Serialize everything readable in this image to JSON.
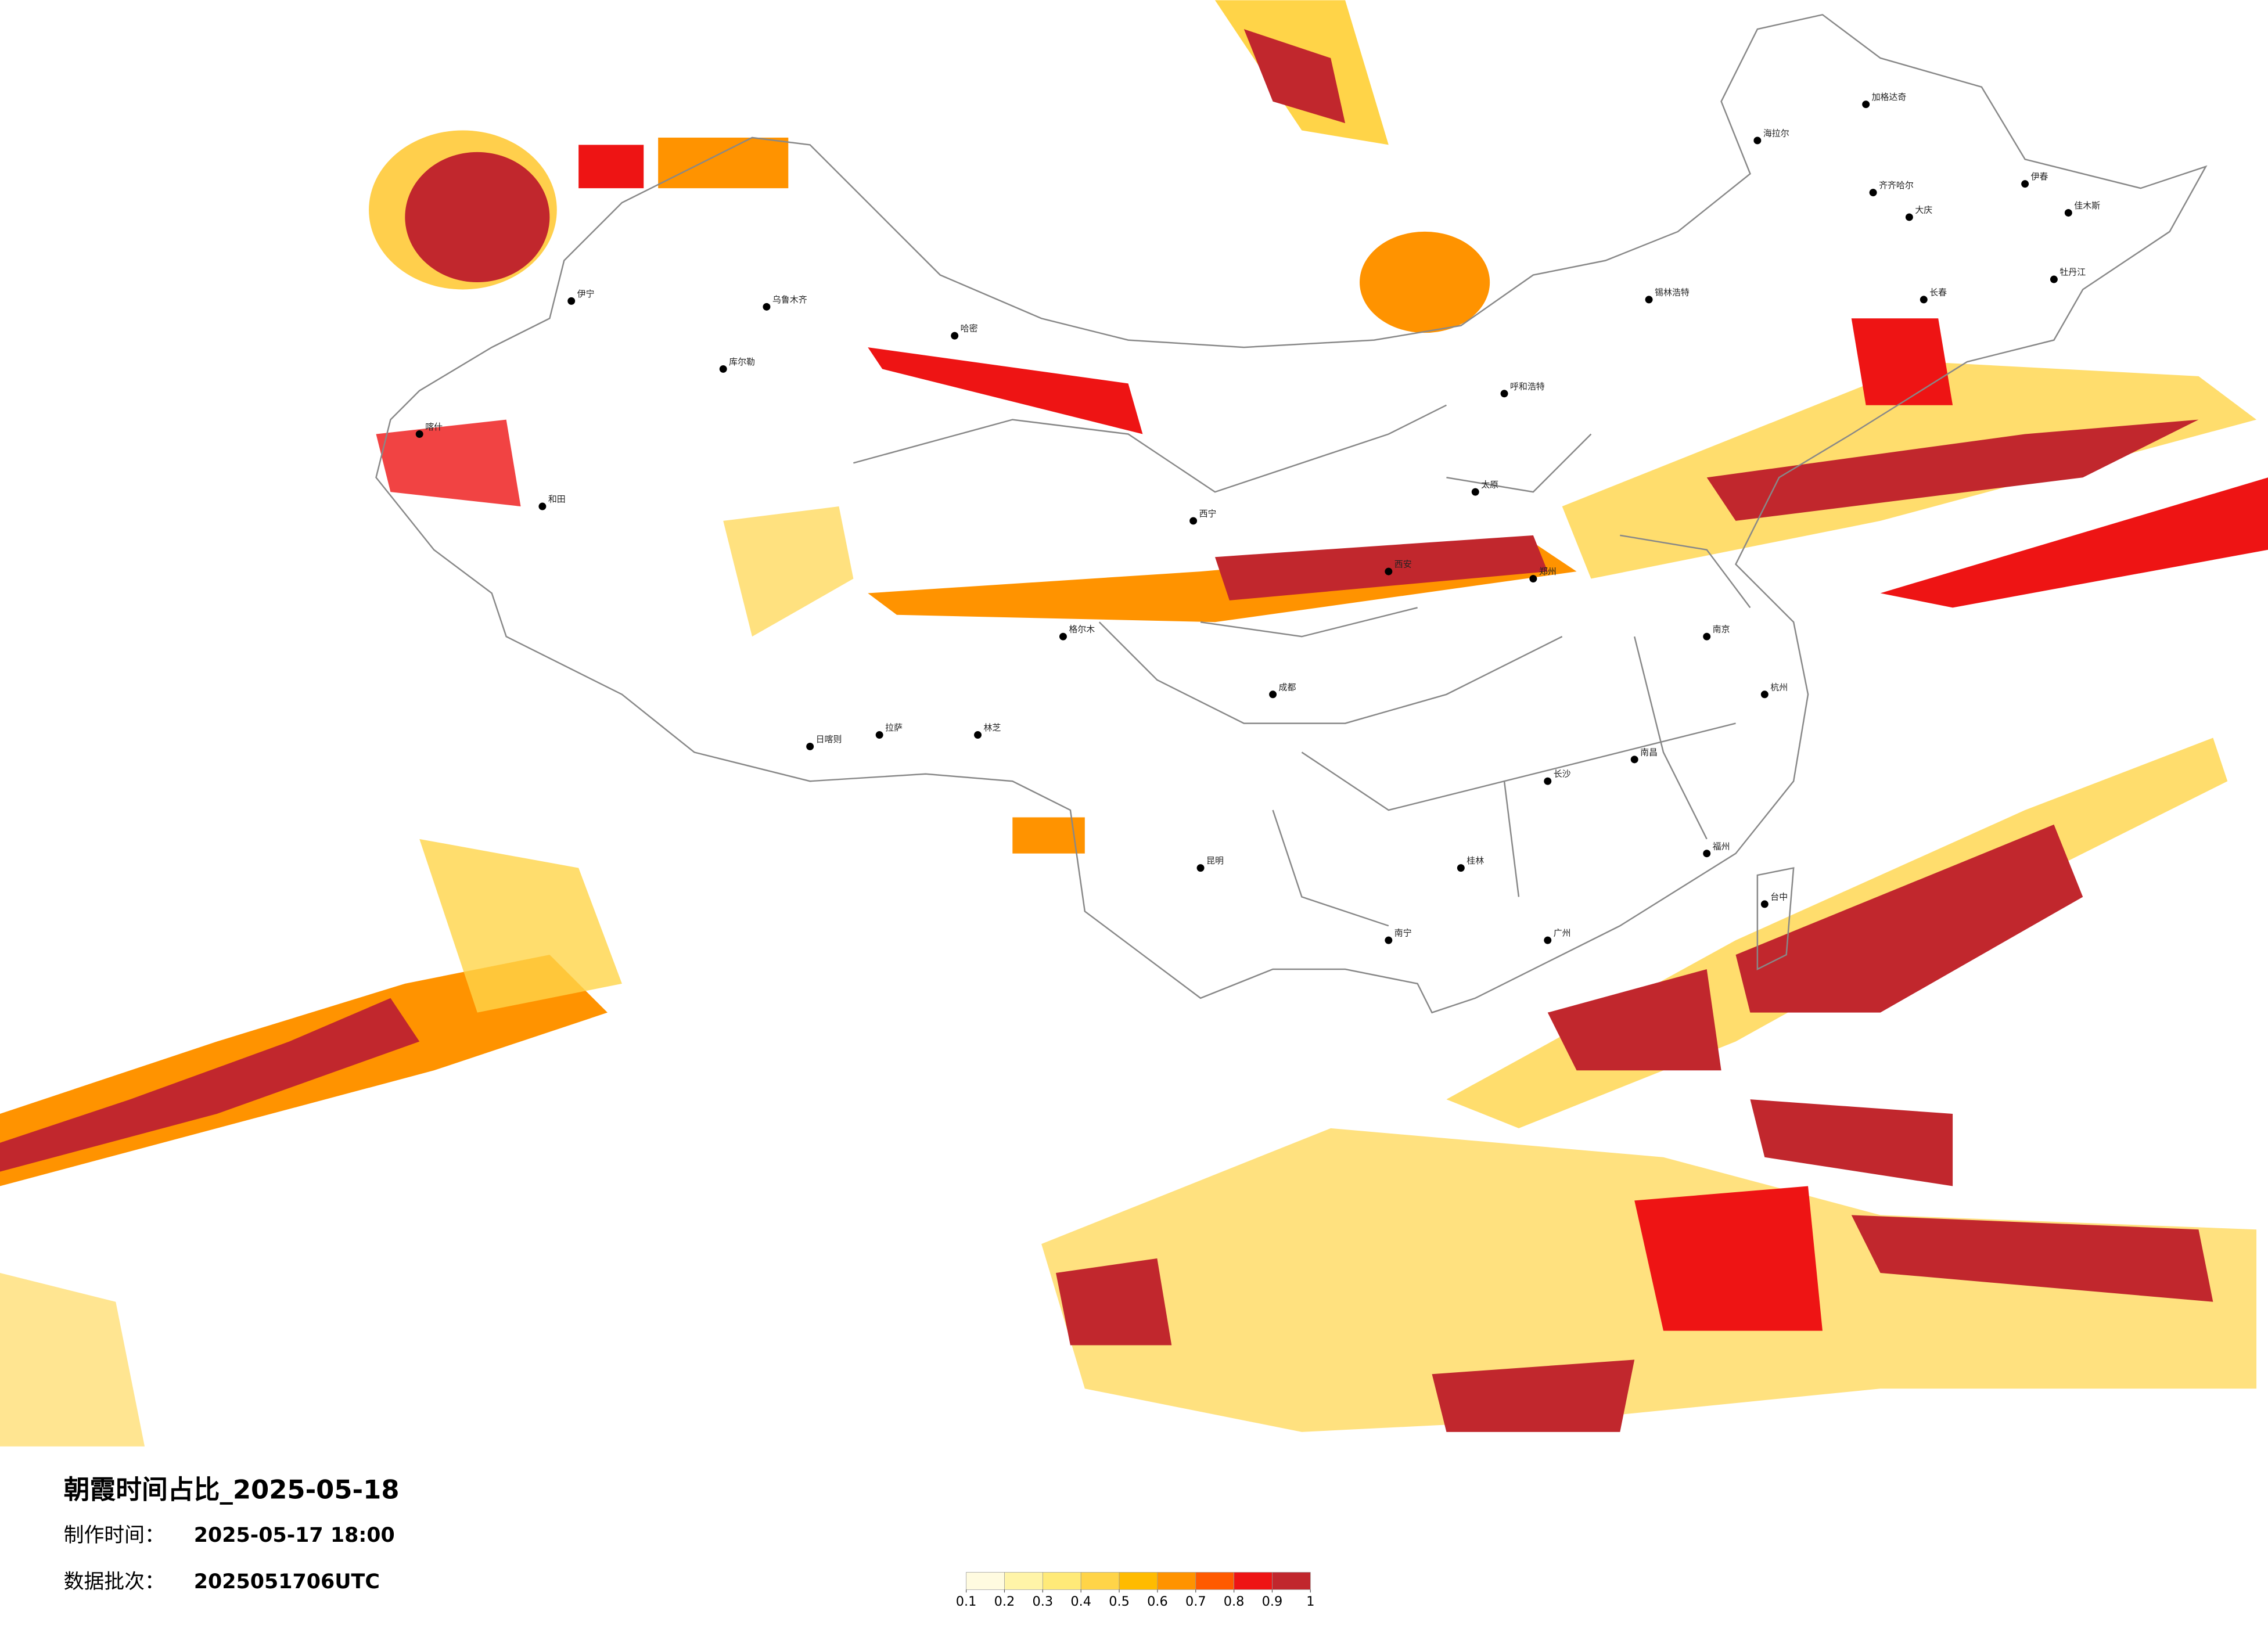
{
  "title": "朝霞时间占比_2025-05-18",
  "made_label": "制作时间：",
  "made_time": "2025-05-17 18:00",
  "batch_label": "数据批次：",
  "batch": "2025051706UTC",
  "legend": {
    "colors": [
      "#fffbe0",
      "#fff4a8",
      "#ffea78",
      "#ffd448",
      "#ffbb00",
      "#ff9300",
      "#ff5a00",
      "#ee1414",
      "#c1272d"
    ],
    "ticks": [
      0.1,
      0.2,
      0.3,
      0.4,
      0.5,
      0.6,
      0.7,
      0.8,
      0.9,
      1
    ]
  },
  "cities": [
    "海拉尔",
    "加格达奇",
    "齐齐哈尔",
    "大庆",
    "伊春",
    "佳木斯",
    "牡丹江",
    "长春",
    "锡林浩特",
    "呼和浩特",
    "西宁",
    "拉萨",
    "日喀则",
    "林芝",
    "昆明",
    "南宁",
    "桂林",
    "长沙",
    "南昌",
    "杭州",
    "广州",
    "乌鲁木齐",
    "伊宁",
    "喀什",
    "和田",
    "库尔勒",
    "哈密",
    "格尔木",
    "太原",
    "郑州",
    "西安",
    "成都",
    "福州",
    "台中",
    "南京"
  ]
}
